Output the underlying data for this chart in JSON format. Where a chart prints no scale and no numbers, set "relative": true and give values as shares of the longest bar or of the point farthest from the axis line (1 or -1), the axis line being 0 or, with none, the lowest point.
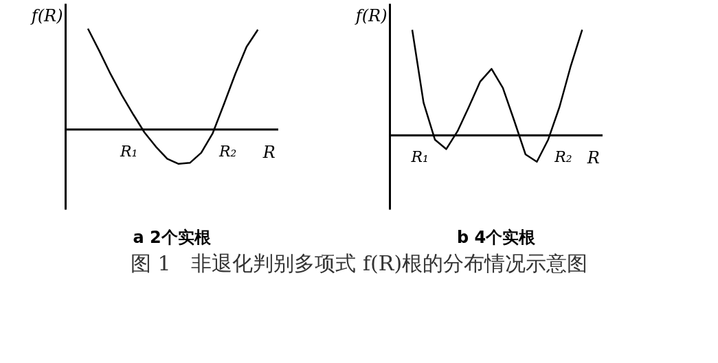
{
  "chart_data": [
    {
      "type": "line",
      "title": "a 2个实根",
      "xlabel": "R",
      "ylabel": "f(R)",
      "relative": true,
      "categories": [
        null,
        null,
        null,
        null,
        null,
        null,
        null,
        null,
        null,
        null,
        null,
        null,
        null,
        null,
        null,
        null
      ],
      "series": [
        {
          "color": "#000000",
          "values": [
            1.0,
            0.78,
            0.55,
            0.34,
            0.15,
            -0.03,
            -0.17,
            -0.29,
            -0.34,
            -0.33,
            -0.23,
            -0.04,
            0.25,
            0.55,
            0.82,
            0.99
          ]
        }
      ],
      "annotations": [
        "R₁",
        "R₂"
      ]
    },
    {
      "type": "line",
      "title": "b 4个实根",
      "xlabel": "R",
      "ylabel": "f(R)",
      "relative": true,
      "categories": [
        null,
        null,
        null,
        null,
        null,
        null,
        null,
        null,
        null,
        null,
        null,
        null,
        null,
        null,
        null,
        null
      ],
      "series": [
        {
          "color": "#000000",
          "values": [
            1.0,
            0.31,
            -0.04,
            -0.13,
            0.04,
            0.27,
            0.51,
            0.63,
            0.45,
            0.14,
            -0.18,
            -0.25,
            -0.04,
            0.27,
            0.66,
            1.0
          ]
        }
      ],
      "annotations": [
        "R₁",
        "R₂",
        "图 1　非退化判别多项式 f(R)根的分布情况示意图"
      ]
    }
  ]
}
